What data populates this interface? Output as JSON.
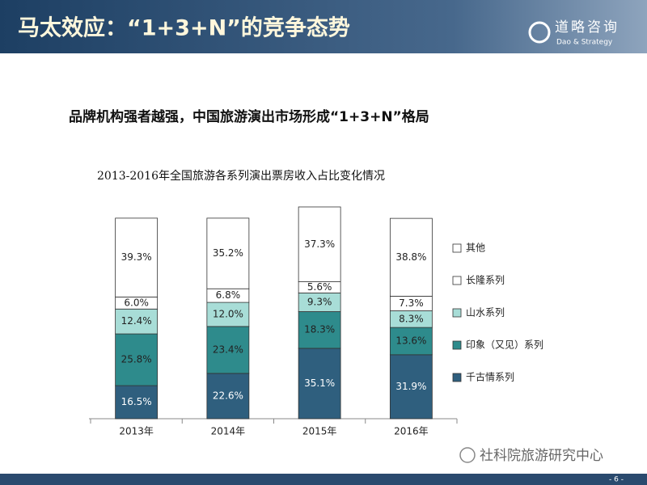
{
  "header": {
    "title": "马太效应：“1+3+N”的竞争态势",
    "logo_name": "道略咨询",
    "logo_sub": "Dao & Strategy"
  },
  "subtitle": "品牌机构强者越强，中国旅游演出市场形成“1+3+N”格局",
  "chart_data": {
    "type": "stacked_bar",
    "title": "2013-2016年全国旅游各系列演出票房收入占比变化情况",
    "categories": [
      "2013年",
      "2014年",
      "2015年",
      "2016年"
    ],
    "ylim": [
      0,
      106
    ],
    "series": [
      {
        "name": "千古情系列",
        "color": "#2f5f7e",
        "values": [
          16.5,
          22.6,
          35.1,
          31.9
        ],
        "value_labels": [
          "16.5%",
          "22.6%",
          "35.1%",
          "31.9%"
        ]
      },
      {
        "name": "印象（又见）系列",
        "color": "#2e8b8c",
        "values": [
          25.8,
          23.4,
          18.3,
          13.6
        ],
        "value_labels": [
          "25.8%",
          "23.4%",
          "18.3%",
          "13.6%"
        ]
      },
      {
        "name": "山水系列",
        "color": "#a8ddd7",
        "values": [
          12.4,
          12.0,
          9.3,
          8.3
        ],
        "value_labels": [
          "12.4%",
          "12.0%",
          "9.3%",
          "8.3%"
        ]
      },
      {
        "name": "长隆系列",
        "color": "#ffffff",
        "values": [
          6.0,
          6.8,
          5.6,
          7.3
        ],
        "value_labels": [
          "6.0%",
          "6.8%",
          "5.6%",
          "7.3%"
        ]
      },
      {
        "name": "其他",
        "color": "#ffffff",
        "values": [
          39.3,
          35.2,
          37.3,
          38.8
        ],
        "value_labels": [
          "39.3%",
          "35.2%",
          "37.3%",
          "38.8%"
        ]
      }
    ]
  },
  "footer": {
    "watermark": "社科院旅游研究中心",
    "page": "- 6 -"
  }
}
